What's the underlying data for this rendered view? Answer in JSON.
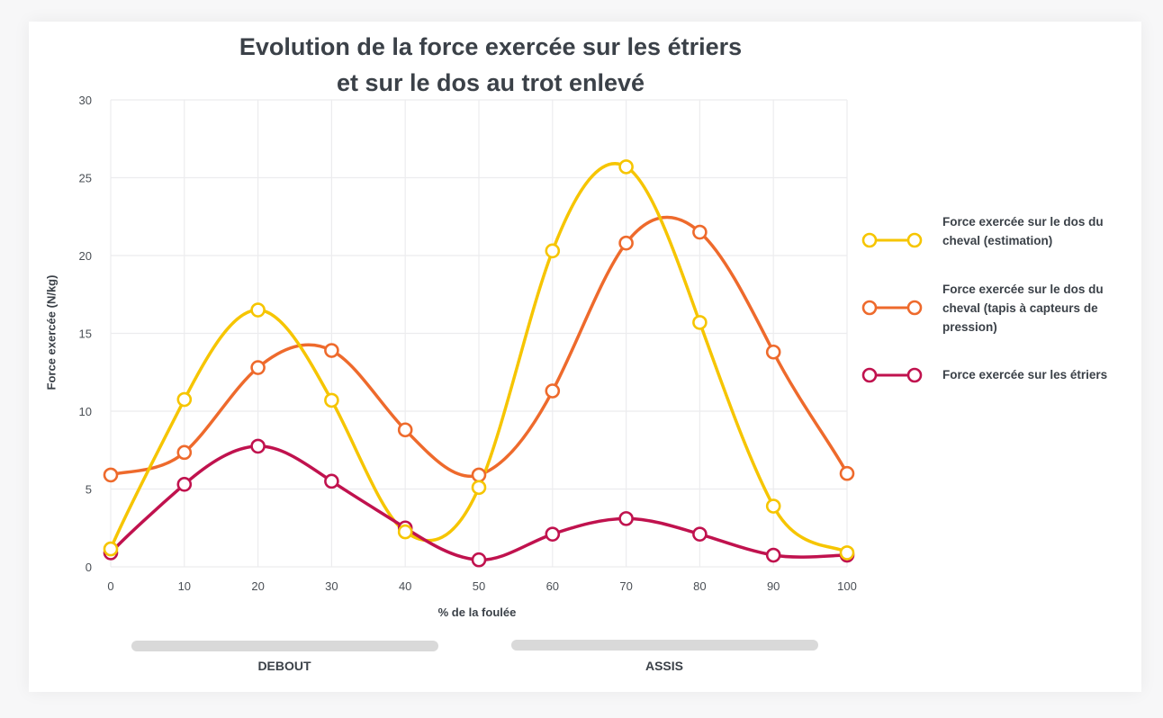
{
  "chart_data": {
    "type": "line",
    "title": "Evolution de la force exercée sur les étriers et sur le dos au trot enlevé",
    "title_lines": [
      "Evolution de la force exercée sur les étriers",
      "et sur le dos au trot enlevé"
    ],
    "xlabel": "% de la foulée",
    "ylabel": "Force exercée (N/kg)",
    "xlim": [
      0,
      100
    ],
    "ylim": [
      0,
      30
    ],
    "x": [
      0,
      10,
      20,
      30,
      40,
      50,
      60,
      70,
      80,
      90,
      100
    ],
    "x_ticks": [
      "0",
      "10",
      "20",
      "30",
      "40",
      "50",
      "60",
      "70",
      "80",
      "90",
      "100"
    ],
    "y_ticks": [
      "0",
      "5",
      "10",
      "15",
      "20",
      "25",
      "30"
    ],
    "grid": true,
    "legend_position": "right",
    "series": [
      {
        "name": "Force exercée sur le dos du cheval (estimation)",
        "color": "#f6c500",
        "values": [
          1.15,
          10.75,
          16.5,
          10.7,
          2.25,
          5.1,
          20.3,
          25.7,
          15.7,
          3.9,
          0.9
        ]
      },
      {
        "name": "Force exercée sur le dos du cheval (tapis à capteurs de pression)",
        "color": "#ee6a2c",
        "values": [
          5.9,
          7.35,
          12.8,
          13.9,
          8.8,
          5.9,
          11.3,
          20.8,
          21.5,
          13.8,
          6.0
        ]
      },
      {
        "name": " Force exercée sur les étriers",
        "color": "#c0124e",
        "values": [
          0.9,
          5.3,
          7.75,
          5.5,
          2.5,
          0.45,
          2.1,
          3.1,
          2.1,
          0.75,
          0.75
        ]
      }
    ],
    "phases": [
      {
        "label": "DEBOUT",
        "range": [
          3,
          45
        ]
      },
      {
        "label": "ASSIS",
        "range": [
          54.5,
          96
        ]
      }
    ]
  }
}
